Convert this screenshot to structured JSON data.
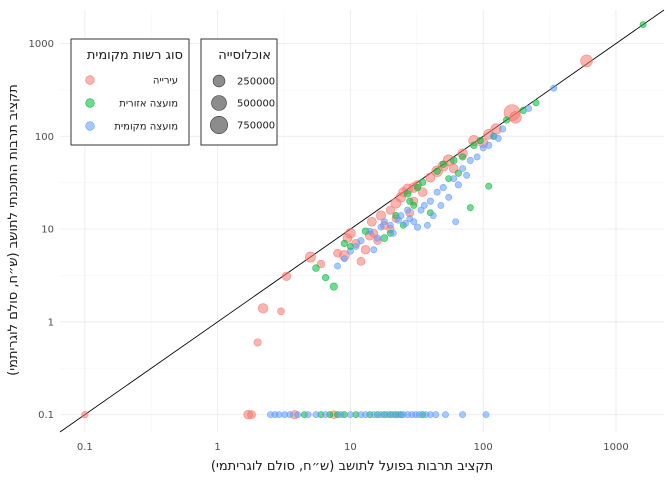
{
  "chart_data": {
    "type": "scatter",
    "xlabel": "תקציב תרבות בפועל לתושב (ש״ח, סולם לוגריתמי)",
    "ylabel": "תקציב תרבות התוכנתי לתושב (ש״ח, סולם לוגריתמי)",
    "x_scale": "log",
    "y_scale": "log",
    "xlim": [
      0.065,
      2300
    ],
    "ylim": [
      0.065,
      2300
    ],
    "x_ticks": [
      0.1,
      1,
      10,
      100,
      1000
    ],
    "x_tick_labels": [
      "0.1",
      "1",
      "10",
      "100",
      "1000"
    ],
    "y_ticks": [
      0.1,
      1,
      10,
      100,
      1000
    ],
    "y_tick_labels": [
      "0.1",
      "1",
      "10",
      "100",
      "1000"
    ],
    "grid": true,
    "reference_line": "y = x",
    "legend_color": {
      "title": "סוג רשות מקומית",
      "placement": "top-left",
      "entries": [
        {
          "label": "עירייה",
          "color": "#F8766D"
        },
        {
          "label": "מועצה אזורית",
          "color": "#00BA38"
        },
        {
          "label": "מועצה מקומית",
          "color": "#619CFF"
        }
      ]
    },
    "legend_size": {
      "title": "אוכלוסייה",
      "entries": [
        {
          "label": "250000",
          "value": 250000
        },
        {
          "label": "500000",
          "value": 500000
        },
        {
          "label": "750000",
          "value": 750000
        }
      ]
    },
    "series": [
      {
        "name": "עירייה",
        "color": "#F8766D",
        "points": [
          [
            0.1,
            0.1,
            20000
          ],
          [
            1.7,
            0.1,
            90000
          ],
          [
            1.8,
            0.1,
            60000
          ],
          [
            3.8,
            0.1,
            70000
          ],
          [
            7.5,
            0.1,
            50000
          ],
          [
            2.0,
            0.6,
            40000
          ],
          [
            2.2,
            1.4,
            120000
          ],
          [
            3.0,
            1.3,
            30000
          ],
          [
            3.3,
            3.1,
            80000
          ],
          [
            5.0,
            5.0,
            150000
          ],
          [
            6.0,
            4.2,
            50000
          ],
          [
            8.0,
            5.5,
            60000
          ],
          [
            9.0,
            5.2,
            140000
          ],
          [
            9.5,
            8.0,
            90000
          ],
          [
            10.0,
            9.0,
            130000
          ],
          [
            11.0,
            7.0,
            70000
          ],
          [
            12.0,
            4.5,
            60000
          ],
          [
            13.0,
            6.0,
            80000
          ],
          [
            14.0,
            8.5,
            100000
          ],
          [
            15.0,
            9.0,
            60000
          ],
          [
            16.0,
            7.5,
            50000
          ],
          [
            14.5,
            12.0,
            90000
          ],
          [
            17.0,
            14.0,
            110000
          ],
          [
            18.0,
            11.0,
            60000
          ],
          [
            20.0,
            16.0,
            70000
          ],
          [
            22.0,
            19.0,
            140000
          ],
          [
            24.0,
            22.0,
            130000
          ],
          [
            25.0,
            25.0,
            100000
          ],
          [
            27.0,
            27.0,
            150000
          ],
          [
            30.0,
            28.0,
            120000
          ],
          [
            32.0,
            30.0,
            80000
          ],
          [
            35.0,
            25.0,
            90000
          ],
          [
            40.0,
            36.0,
            100000
          ],
          [
            45.0,
            42.0,
            180000
          ],
          [
            50.0,
            48.0,
            150000
          ],
          [
            55.0,
            55.0,
            200000
          ],
          [
            60.0,
            45.0,
            90000
          ],
          [
            70.0,
            65.0,
            130000
          ],
          [
            85.0,
            90.0,
            150000
          ],
          [
            100.0,
            85.0,
            120000
          ],
          [
            110.0,
            105.0,
            140000
          ],
          [
            125.0,
            120.0,
            170000
          ],
          [
            165.0,
            180.0,
            600000
          ],
          [
            175.0,
            160.0,
            240000
          ],
          [
            600.0,
            650.0,
            250000
          ],
          [
            20.0,
            10.0,
            40000
          ],
          [
            22.0,
            13.0,
            50000
          ],
          [
            28.0,
            15.0,
            60000
          ],
          [
            30.0,
            20.0,
            70000
          ]
        ]
      },
      {
        "name": "מועצה אזורית",
        "color": "#00BA38",
        "points": [
          [
            5.5,
            3.8,
            25000
          ],
          [
            6.5,
            3.0,
            20000
          ],
          [
            7.5,
            2.4,
            40000
          ],
          [
            9.0,
            7.0,
            20000
          ],
          [
            10.0,
            6.5,
            15000
          ],
          [
            13.0,
            9.5,
            25000
          ],
          [
            18.0,
            8.0,
            30000
          ],
          [
            20.0,
            9.0,
            15000
          ],
          [
            22.0,
            14.0,
            20000
          ],
          [
            25.0,
            11.0,
            15000
          ],
          [
            27.0,
            24.0,
            25000
          ],
          [
            28.0,
            20.0,
            20000
          ],
          [
            30.0,
            18.0,
            15000
          ],
          [
            32.0,
            28.0,
            20000
          ],
          [
            35.0,
            32.0,
            25000
          ],
          [
            40.0,
            15.0,
            15000
          ],
          [
            45.0,
            42.0,
            20000
          ],
          [
            50.0,
            50.0,
            20000
          ],
          [
            55.0,
            35.0,
            15000
          ],
          [
            60.0,
            55.0,
            25000
          ],
          [
            65.0,
            40.0,
            20000
          ],
          [
            70.0,
            60.0,
            20000
          ],
          [
            80.0,
            17.0,
            15000
          ],
          [
            85.0,
            80.0,
            25000
          ],
          [
            95.0,
            90.0,
            20000
          ],
          [
            110.0,
            29.0,
            15000
          ],
          [
            120.0,
            100.0,
            20000
          ],
          [
            150.0,
            150.0,
            20000
          ],
          [
            200.0,
            190.0,
            20000
          ],
          [
            250.0,
            230.0,
            15000
          ],
          [
            1600.0,
            1600.0,
            15000
          ],
          [
            4.5,
            0.1,
            15000
          ],
          [
            6.0,
            0.1,
            15000
          ],
          [
            7.0,
            0.1,
            15000
          ],
          [
            8.0,
            0.1,
            15000
          ],
          [
            9.0,
            0.1,
            15000
          ],
          [
            11.0,
            0.1,
            15000
          ],
          [
            14.0,
            0.1,
            15000
          ],
          [
            16.0,
            0.1,
            15000
          ],
          [
            18.0,
            0.1,
            15000
          ],
          [
            20.0,
            0.1,
            15000
          ],
          [
            22.0,
            0.1,
            15000
          ],
          [
            24.0,
            0.1,
            15000
          ],
          [
            35.0,
            0.1,
            15000
          ]
        ]
      },
      {
        "name": "מועצה מקומית",
        "color": "#619CFF",
        "points": [
          [
            8.0,
            4.0,
            15000
          ],
          [
            9.0,
            4.8,
            15000
          ],
          [
            10.0,
            5.8,
            20000
          ],
          [
            11.0,
            6.5,
            15000
          ],
          [
            12.0,
            7.5,
            20000
          ],
          [
            14.0,
            9.5,
            15000
          ],
          [
            15.0,
            6.0,
            15000
          ],
          [
            16.0,
            8.0,
            20000
          ],
          [
            17.0,
            10.5,
            15000
          ],
          [
            18.0,
            12.0,
            20000
          ],
          [
            20.0,
            11.0,
            15000
          ],
          [
            21.0,
            9.0,
            15000
          ],
          [
            23.0,
            12.5,
            20000
          ],
          [
            24.0,
            14.0,
            15000
          ],
          [
            26.0,
            11.5,
            15000
          ],
          [
            27.0,
            16.0,
            20000
          ],
          [
            28.0,
            13.0,
            15000
          ],
          [
            30.0,
            12.0,
            15000
          ],
          [
            32.0,
            10.5,
            20000
          ],
          [
            34.0,
            16.0,
            15000
          ],
          [
            36.0,
            18.0,
            15000
          ],
          [
            38.0,
            11.0,
            15000
          ],
          [
            40.0,
            20.0,
            20000
          ],
          [
            42.0,
            14.0,
            15000
          ],
          [
            45.0,
            25.0,
            15000
          ],
          [
            48.0,
            18.0,
            15000
          ],
          [
            50.0,
            28.0,
            20000
          ],
          [
            55.0,
            22.0,
            15000
          ],
          [
            60.0,
            35.0,
            15000
          ],
          [
            62.0,
            12.0,
            15000
          ],
          [
            65.0,
            30.0,
            20000
          ],
          [
            70.0,
            45.0,
            15000
          ],
          [
            75.0,
            38.0,
            15000
          ],
          [
            80.0,
            55.0,
            20000
          ],
          [
            90.0,
            60.0,
            15000
          ],
          [
            100.0,
            75.0,
            15000
          ],
          [
            110.0,
            80.0,
            20000
          ],
          [
            120.0,
            100.0,
            15000
          ],
          [
            130.0,
            95.0,
            15000
          ],
          [
            140.0,
            120.0,
            20000
          ],
          [
            220.0,
            200.0,
            15000
          ],
          [
            340.0,
            330.0,
            15000
          ],
          [
            2.5,
            0.1,
            15000
          ],
          [
            2.7,
            0.1,
            15000
          ],
          [
            2.9,
            0.1,
            15000
          ],
          [
            3.2,
            0.1,
            15000
          ],
          [
            3.5,
            0.1,
            15000
          ],
          [
            4.0,
            0.1,
            15000
          ],
          [
            4.8,
            0.1,
            15000
          ],
          [
            5.5,
            0.1,
            15000
          ],
          [
            6.5,
            0.1,
            15000
          ],
          [
            8.5,
            0.1,
            15000
          ],
          [
            10.0,
            0.1,
            15000
          ],
          [
            12.0,
            0.1,
            15000
          ],
          [
            13.0,
            0.1,
            15000
          ],
          [
            15.0,
            0.1,
            15000
          ],
          [
            17.0,
            0.1,
            15000
          ],
          [
            19.0,
            0.1,
            15000
          ],
          [
            21.0,
            0.1,
            15000
          ],
          [
            23.0,
            0.1,
            15000
          ],
          [
            25.0,
            0.1,
            15000
          ],
          [
            27.0,
            0.1,
            15000
          ],
          [
            29.0,
            0.1,
            15000
          ],
          [
            31.0,
            0.1,
            15000
          ],
          [
            33.0,
            0.1,
            15000
          ],
          [
            37.0,
            0.1,
            15000
          ],
          [
            40.0,
            0.1,
            15000
          ],
          [
            44.0,
            0.1,
            15000
          ],
          [
            52.0,
            0.1,
            15000
          ],
          [
            70.0,
            0.1,
            15000
          ],
          [
            105.0,
            0.1,
            15000
          ]
        ]
      }
    ]
  }
}
